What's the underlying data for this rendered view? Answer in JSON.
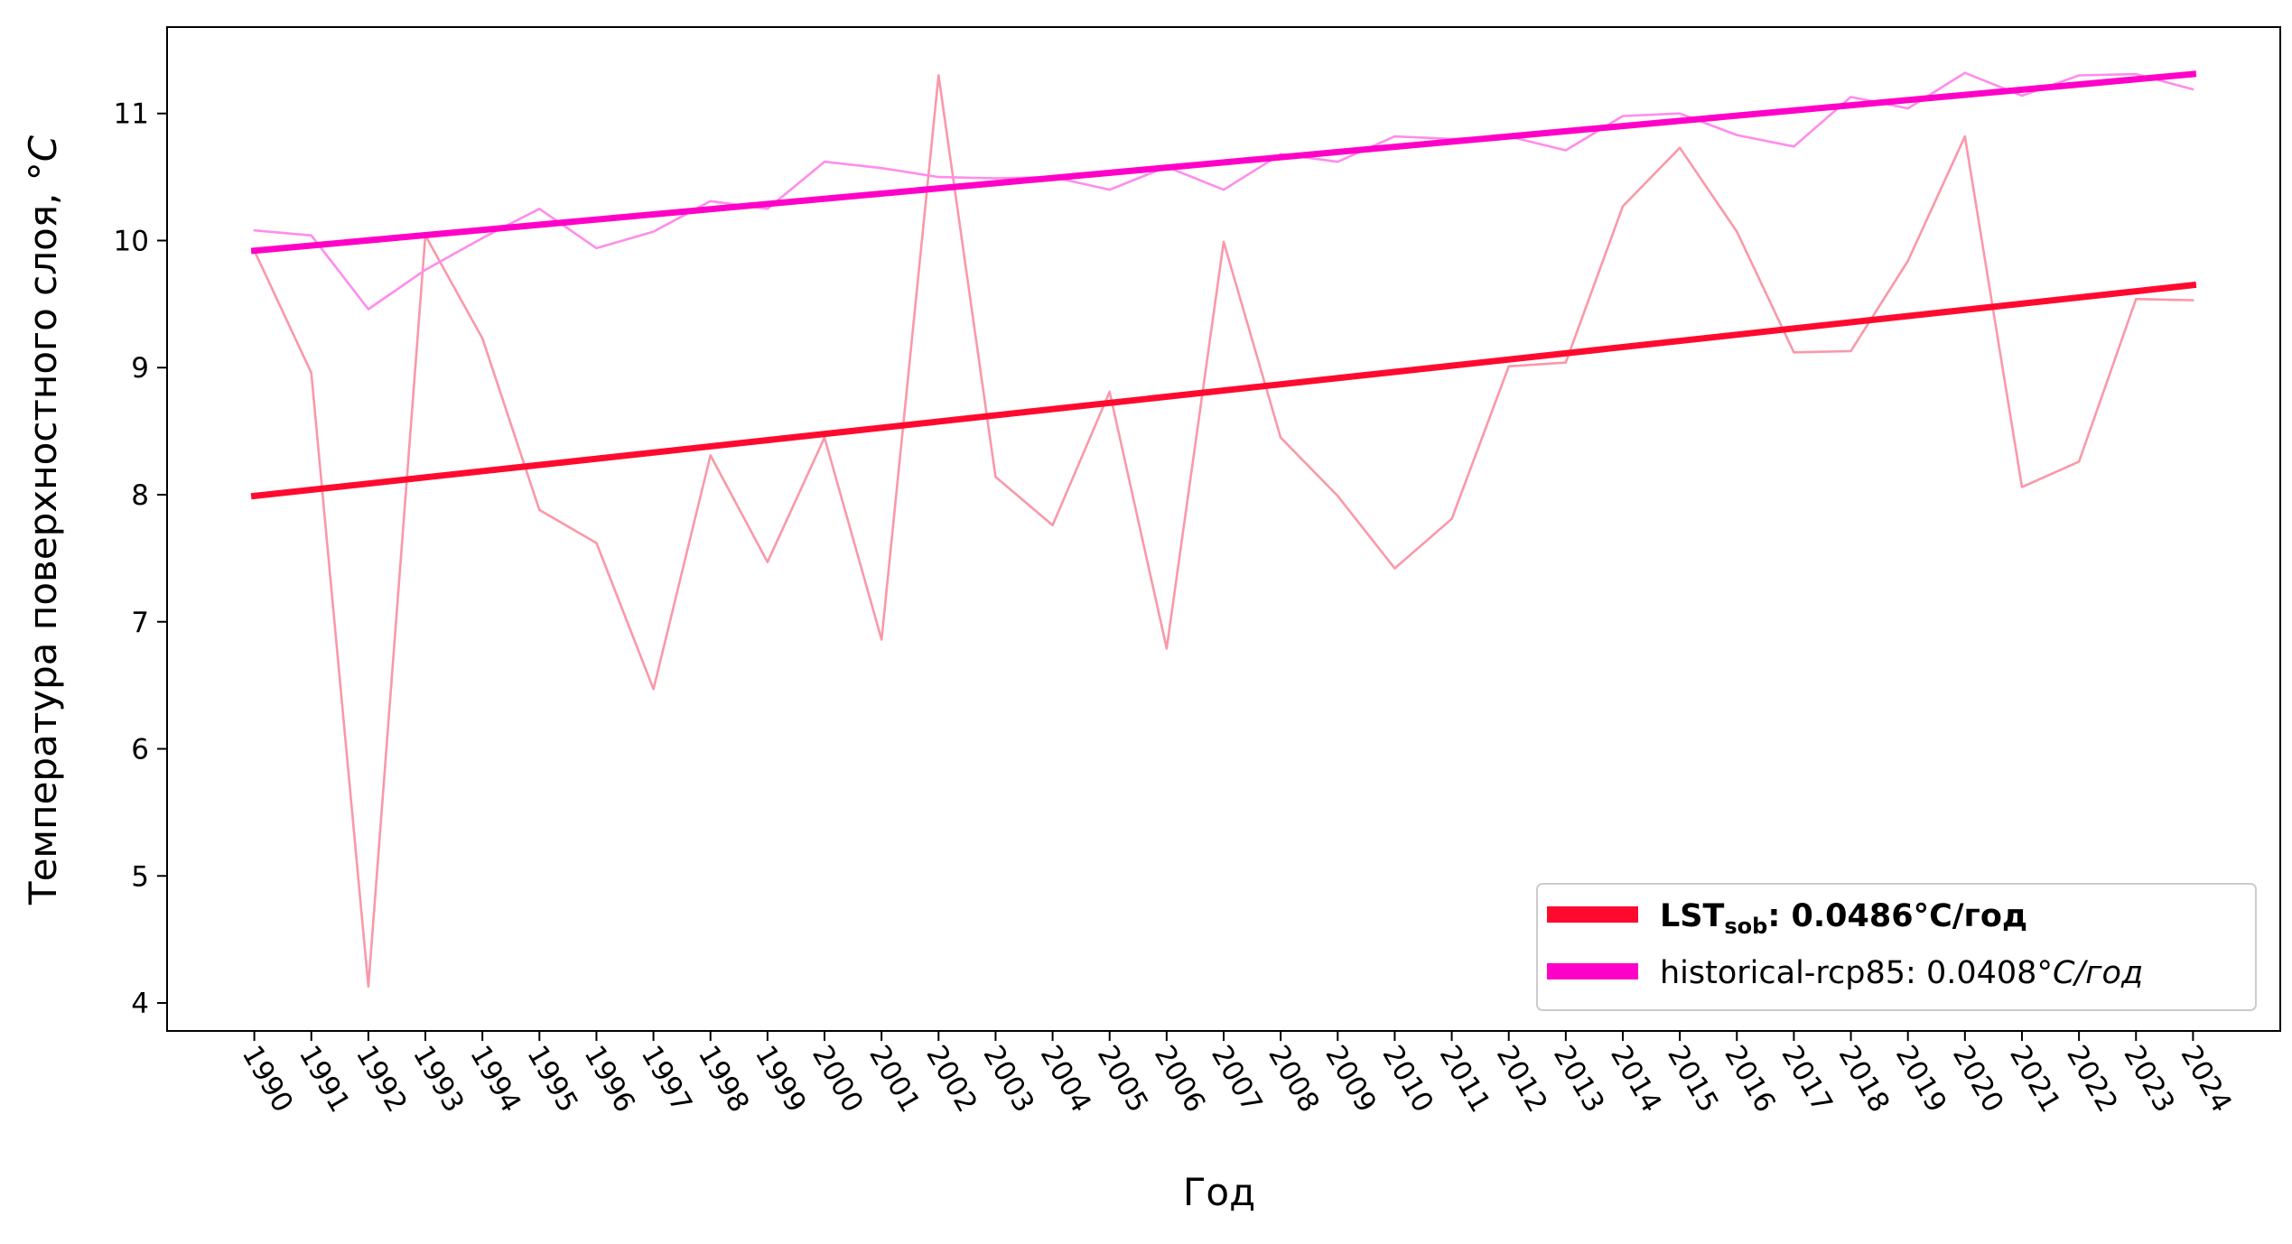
{
  "chart_data": {
    "type": "line",
    "xlabel": "Год",
    "ylabel": "Температура поверхностного слоя, °C",
    "ylim": [
      3.78,
      11.68
    ],
    "yticks": [
      4,
      5,
      6,
      7,
      8,
      9,
      10,
      11
    ],
    "x": [
      1990,
      1991,
      1992,
      1993,
      1994,
      1995,
      1996,
      1997,
      1998,
      1999,
      2000,
      2001,
      2002,
      2003,
      2004,
      2005,
      2006,
      2007,
      2008,
      2009,
      2010,
      2011,
      2012,
      2013,
      2014,
      2015,
      2016,
      2017,
      2018,
      2019,
      2020,
      2021,
      2022,
      2023,
      2024
    ],
    "grid": false,
    "legend_position": "lower-right",
    "series": [
      {
        "name": "LST",
        "color": "#fa98a8",
        "values": [
          9.92,
          8.96,
          4.13,
          10.04,
          9.23,
          7.88,
          7.62,
          6.47,
          8.31,
          7.47,
          8.45,
          6.86,
          11.3,
          8.14,
          7.76,
          8.81,
          6.79,
          9.99,
          8.45,
          7.99,
          7.42,
          7.81,
          9.01,
          9.04,
          10.27,
          10.73,
          10.07,
          9.12,
          9.13,
          9.84,
          10.82,
          8.06,
          8.26,
          9.54,
          9.53
        ]
      },
      {
        "name": "historical-rcp85",
        "color": "#ff8cec",
        "values": [
          10.08,
          10.04,
          9.46,
          9.77,
          10.02,
          10.25,
          9.94,
          10.07,
          10.31,
          10.25,
          10.62,
          10.57,
          10.5,
          10.49,
          10.5,
          10.4,
          10.58,
          10.4,
          10.68,
          10.62,
          10.82,
          10.8,
          10.82,
          10.71,
          10.98,
          11.0,
          10.83,
          10.74,
          11.13,
          11.04,
          11.32,
          11.14,
          11.3,
          11.31,
          11.19
        ]
      }
    ],
    "trends": [
      {
        "series": "LST",
        "color": "#ff0a2f",
        "start": 7.99,
        "end": 9.65
      },
      {
        "series": "historical-rcp85",
        "color": "#ff00c8",
        "start": 9.92,
        "end": 11.31
      }
    ],
    "legend": [
      {
        "main": "LST",
        "sub": "sob",
        "rest": ": 0.0486°C/год",
        "color": "#ff0a2f"
      },
      {
        "text": "historical-rcp85: 0.0408",
        "italic": "°C/год",
        "color": "#ff00c8"
      }
    ]
  }
}
